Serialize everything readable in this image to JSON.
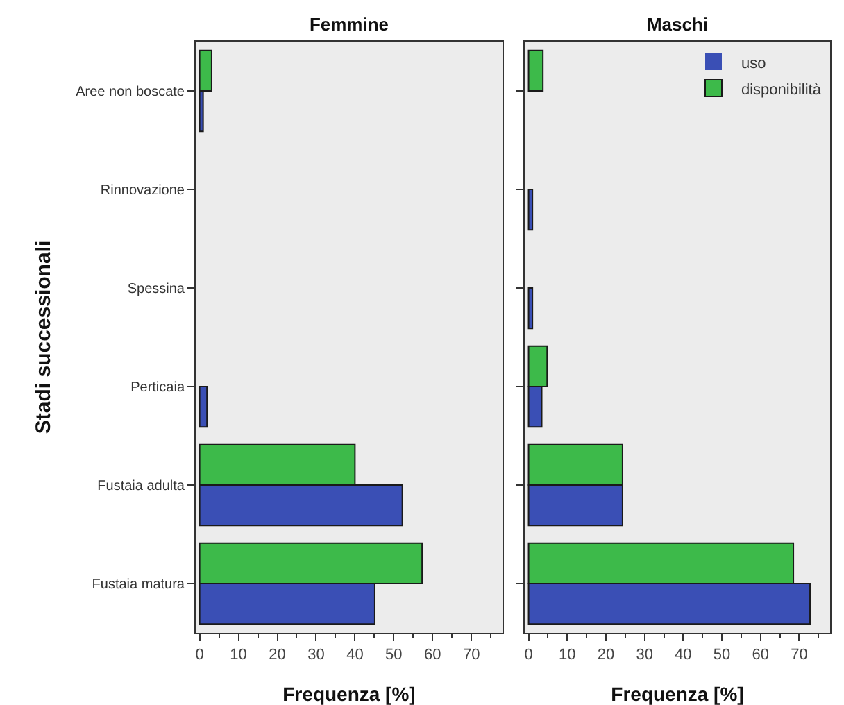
{
  "chart_data": [
    {
      "type": "bar",
      "orientation": "horizontal",
      "title": "Femmine",
      "xlabel": "Frequenza [%]",
      "ylabel": "Stadi successionali",
      "categories": [
        "Aree non boscate",
        "Rinnovazione",
        "Spessina",
        "Perticaia",
        "Fustaia adulta",
        "Fustaia matura"
      ],
      "series": [
        {
          "color": "#3a4fb5",
          "values": [
            0.9,
            0,
            0,
            1.9,
            52.2,
            45.1
          ]
        },
        {
          "color": "#3dba4a",
          "values": [
            3.1,
            0,
            0,
            0,
            40,
            57.3
          ]
        }
      ],
      "xlim": [
        -1,
        78
      ],
      "xticks": [
        0,
        10,
        20,
        30,
        40,
        50,
        60,
        70
      ],
      "grid": false,
      "legend": false
    },
    {
      "type": "bar",
      "orientation": "horizontal",
      "title": "Maschi",
      "xlabel": "Frequenza [%]",
      "categories": [
        null,
        null,
        null,
        null,
        null,
        null
      ],
      "series": [
        {
          "name": "uso",
          "color": "#3a4fb5",
          "values": [
            0,
            1,
            1,
            3.4,
            24.3,
            72.8
          ]
        },
        {
          "name": "disponibilità",
          "color": "#3dba4a",
          "values": [
            3.7,
            0,
            0,
            4.8,
            24.3,
            68.5
          ]
        }
      ],
      "xlim": [
        -1,
        78
      ],
      "xticks": [
        0,
        10,
        20,
        30,
        40,
        50,
        60,
        70
      ],
      "grid": false,
      "legend": "top right",
      "tick_labels": "x"
    }
  ]
}
